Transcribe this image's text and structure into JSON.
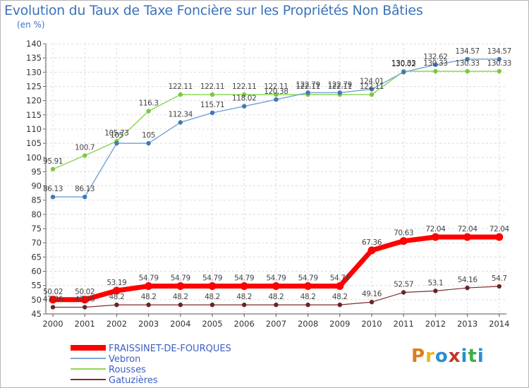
{
  "header": {
    "title": "Evolution du Taux de Taxe Foncière sur les Propriétés Non Bâties",
    "unit": "(en %)"
  },
  "logo": {
    "text": "Proxiti",
    "colors": [
      "#e07b1f",
      "#e8b820",
      "#2a8fd0",
      "#c0392b",
      "#2a8fd0",
      "#3fae49",
      "#2a8fd0"
    ]
  },
  "chart_data": {
    "type": "line",
    "title": "Evolution du Taux de Taxe Foncière sur les Propriétés Non Bâties",
    "ylabel": "(en %)",
    "xlabel": "",
    "x": [
      "2000",
      "2001",
      "2002",
      "2003",
      "2004",
      "2005",
      "2006",
      "2007",
      "2008",
      "2009",
      "2010",
      "2011",
      "2012",
      "2013",
      "2014"
    ],
    "ylim": [
      45,
      140
    ],
    "yticks": [
      45,
      50,
      55,
      60,
      65,
      70,
      75,
      80,
      85,
      90,
      95,
      100,
      105,
      110,
      115,
      120,
      125,
      130,
      135,
      140
    ],
    "grid": true,
    "legend_position": "bottom-left",
    "series": [
      {
        "name": "FRAISSINET-DE-FOURQUES",
        "color": "#ff0000",
        "width": 7,
        "marker_color": "#ff0000",
        "values": [
          50.02,
          50.02,
          53.19,
          54.79,
          54.79,
          54.79,
          54.79,
          54.79,
          54.79,
          54.79,
          67.36,
          70.63,
          72.04,
          72.04,
          72.04
        ],
        "labels": [
          "50.02",
          "50.02",
          "53.19",
          "54.79",
          "54.79",
          "54.79",
          "54.79",
          "54.79",
          "54.79",
          "54.79",
          "67.36",
          "70.63",
          "72.04",
          "72.04",
          "72.04"
        ]
      },
      {
        "name": "Vebron",
        "color": "#7ba7d6",
        "width": 1.5,
        "marker_color": "#3f78b9",
        "values": [
          86.13,
          86.13,
          105,
          105,
          112.34,
          115.71,
          118.02,
          120.38,
          122.79,
          122.79,
          124.01,
          130.02,
          132.62,
          134.57,
          134.57
        ],
        "labels": [
          "86.13",
          "86.13",
          "105",
          "105",
          "112.34",
          "115.71",
          "118.02",
          "120.38",
          "122.79",
          "122.79",
          "124.01",
          "130.02",
          "132.62",
          "134.57",
          "134.57"
        ]
      },
      {
        "name": "Rousses",
        "color": "#8fd65a",
        "width": 1.5,
        "marker_color": "#7cc940",
        "values": [
          95.91,
          100.7,
          105.73,
          116.3,
          122.11,
          122.11,
          122.11,
          122.11,
          122.11,
          122.11,
          122.11,
          130.33,
          130.33,
          130.33,
          130.33
        ],
        "labels": [
          "95.91",
          "100.7",
          "105.73",
          "116.3",
          "122.11",
          "122.11",
          "122.11",
          "122.11",
          "122.11",
          "122.11",
          "122.11",
          "130.33",
          "130.33",
          "130.33",
          "130.33"
        ]
      },
      {
        "name": "Gatuzières",
        "color": "#7a2e2e",
        "width": 1.2,
        "marker_color": "#6b2424",
        "values": [
          47.36,
          47.36,
          48.2,
          48.2,
          48.2,
          48.2,
          48.2,
          48.2,
          48.2,
          48.2,
          49.16,
          52.57,
          53.1,
          54.16,
          54.7
        ],
        "labels": [
          "47.36",
          "47.36",
          "48.2",
          "48.2",
          "48.2",
          "48.2",
          "48.2",
          "48.2",
          "48.2",
          "48.2",
          "49.16",
          "52.57",
          "53.1",
          "54.16",
          "54.7"
        ]
      }
    ]
  }
}
